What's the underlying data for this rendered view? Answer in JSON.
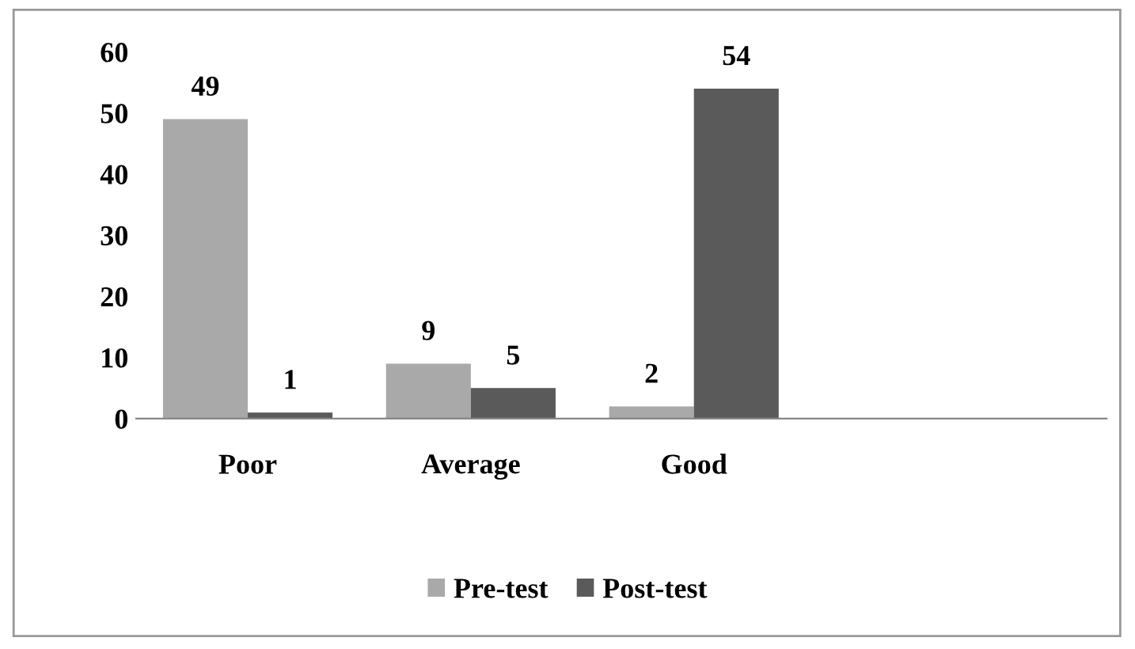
{
  "chart_data": {
    "type": "bar",
    "categories": [
      "Poor",
      "Average",
      "Good"
    ],
    "series": [
      {
        "name": "Pre-test",
        "color": "#a9a9a9",
        "values": [
          49,
          9,
          2
        ]
      },
      {
        "name": "Post-test",
        "color": "#5a5a5a",
        "values": [
          1,
          5,
          54
        ]
      }
    ],
    "ylim": [
      0,
      60
    ],
    "yticks": [
      0,
      10,
      20,
      30,
      40,
      50,
      60
    ],
    "data_labels": true,
    "grid": false,
    "legend": "bottom"
  }
}
